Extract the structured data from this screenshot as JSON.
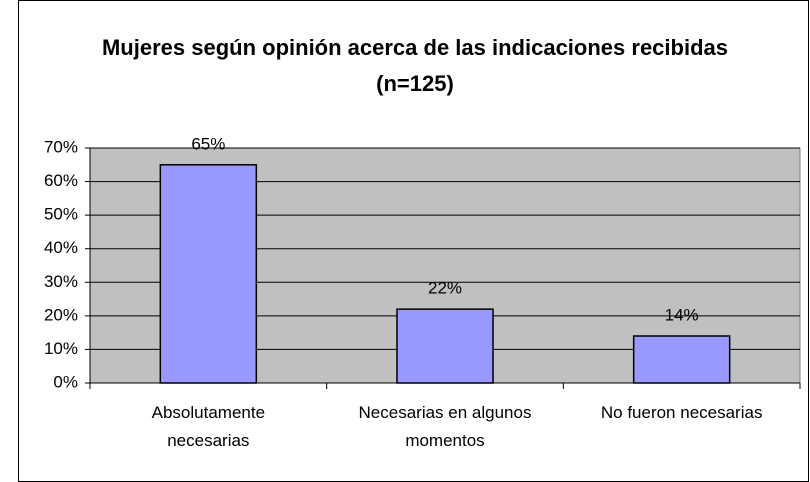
{
  "chart_data": {
    "type": "bar",
    "title": "Mujeres según opinión acerca de las indicaciones recibidas (n=125)",
    "categories": [
      "Absolutamente necesarias",
      "Necesarias en algunos momentos",
      "No fueron necesarias"
    ],
    "values": [
      65,
      22,
      14
    ],
    "value_labels": [
      "65%",
      "22%",
      "14%"
    ],
    "color": "#9999ff",
    "ylim": [
      0,
      70
    ],
    "yticks": [
      {
        "value": 0,
        "label": "0%"
      },
      {
        "value": 10,
        "label": "10%"
      },
      {
        "value": 20,
        "label": "20%"
      },
      {
        "value": 30,
        "label": "30%"
      },
      {
        "value": 40,
        "label": "40%"
      },
      {
        "value": 50,
        "label": "50%"
      },
      {
        "value": 60,
        "label": "60%"
      },
      {
        "value": 70,
        "label": "70%"
      }
    ],
    "grid": true
  }
}
